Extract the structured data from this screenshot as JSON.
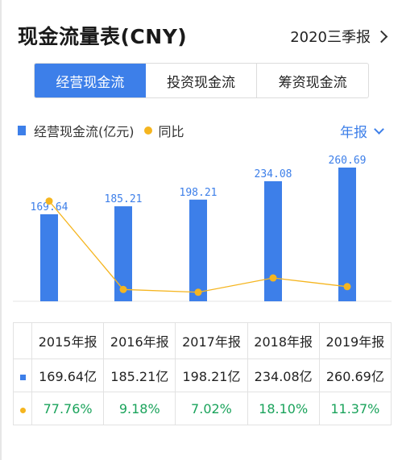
{
  "header": {
    "title": "现金流量表(CNY)",
    "period": "2020三季报"
  },
  "tabs": [
    {
      "label": "经营现金流",
      "active": true
    },
    {
      "label": "投资现金流",
      "active": false
    },
    {
      "label": "筹资现金流",
      "active": false
    }
  ],
  "legend": {
    "bar_label": "经营现金流(亿元)",
    "line_label": "同比"
  },
  "frequency": "年报",
  "colors": {
    "bar": "#3d7fe9",
    "line": "#f5b51f",
    "positive": "#1aa35b"
  },
  "chart_data": {
    "type": "bar",
    "categories": [
      "2015年报",
      "2016年报",
      "2017年报",
      "2018年报",
      "2019年报"
    ],
    "series": [
      {
        "name": "经营现金流(亿元)",
        "type": "bar",
        "values": [
          169.64,
          185.21,
          198.21,
          234.08,
          260.69
        ],
        "labels": [
          "169.64",
          "185.21",
          "198.21",
          "234.08",
          "260.69"
        ]
      },
      {
        "name": "同比",
        "type": "line",
        "values": [
          77.76,
          9.18,
          7.02,
          18.1,
          11.37
        ]
      }
    ],
    "ylim": [
      0,
      260.69
    ],
    "y2lim": [
      0,
      100
    ],
    "grid": false,
    "legend": "top-left"
  },
  "table": {
    "headers": [
      "2015年报",
      "2016年报",
      "2017年报",
      "2018年报",
      "2019年报"
    ],
    "rows": [
      {
        "marker": "bar",
        "cells": [
          "169.64亿",
          "185.21亿",
          "198.21亿",
          "234.08亿",
          "260.69亿"
        ]
      },
      {
        "marker": "line",
        "cells": [
          "77.76%",
          "9.18%",
          "7.02%",
          "18.10%",
          "11.37%"
        ]
      }
    ]
  }
}
